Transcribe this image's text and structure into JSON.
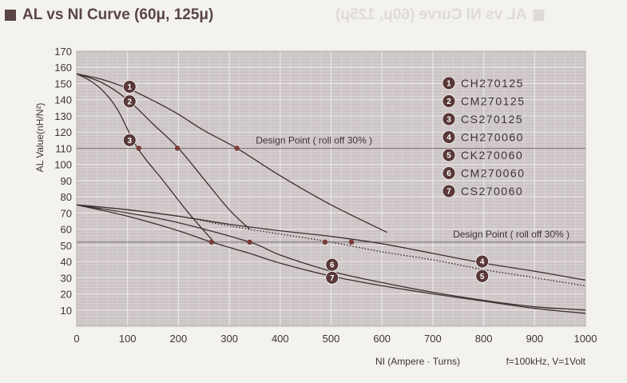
{
  "title": "AL vs NI Curve (60μ, 125μ)",
  "title_color": "#5a4545",
  "plot_bg": "#ccc4c5",
  "curve_color": "#3d3030",
  "chart_data": {
    "type": "line",
    "xlabel": "NI (Ampere · Turns)",
    "ylabel": "AL Value(nH/N²)",
    "condition": "f=100kHz, V=1Volt",
    "xlim": [
      0,
      1000
    ],
    "ylim": [
      0,
      170
    ],
    "x_ticks": [
      "0",
      "100",
      "200",
      "300",
      "400",
      "500",
      "600",
      "700",
      "800",
      "900",
      "1000"
    ],
    "y_ticks": [
      "10",
      "20",
      "30",
      "40",
      "50",
      "60",
      "70",
      "80",
      "90",
      "100",
      "110",
      "120",
      "130",
      "140",
      "150",
      "160",
      "170"
    ],
    "grid": true,
    "legend_position": "top-right",
    "legend": [
      {
        "badge": "1",
        "label": "CH270125"
      },
      {
        "badge": "2",
        "label": "CM270125"
      },
      {
        "badge": "3",
        "label": "CS270125"
      },
      {
        "badge": "4",
        "label": "CH270060"
      },
      {
        "badge": "5",
        "label": "CK270060"
      },
      {
        "badge": "6",
        "label": "CM270060"
      },
      {
        "badge": "7",
        "label": "CS270060"
      }
    ],
    "design_points": [
      {
        "label": "Design Point ( roll off 30% )",
        "y": 110
      },
      {
        "label": "Design Point ( roll off 30% )",
        "y": 52
      }
    ],
    "series": [
      {
        "name": "CH270125",
        "badge": "1",
        "dash": false,
        "x": [
          0,
          50,
          100,
          150,
          200,
          250,
          315,
          400,
          500,
          610
        ],
        "y": [
          156,
          152.5,
          147,
          139.5,
          131,
          121,
          110,
          93,
          75,
          58
        ],
        "design_point": [
          315,
          110
        ],
        "badge_at": [
          104,
          148
        ]
      },
      {
        "name": "CM270125",
        "badge": "2",
        "dash": false,
        "x": [
          0,
          50,
          100,
          150,
          200,
          250,
          300,
          340
        ],
        "y": [
          156,
          150.5,
          140,
          125,
          110,
          91,
          72,
          60
        ],
        "design_point": [
          198,
          110
        ],
        "badge_at": [
          104,
          139
        ]
      },
      {
        "name": "CS270125",
        "badge": "3",
        "dash": false,
        "x": [
          0,
          25,
          50,
          80,
          120,
          170,
          220,
          270
        ],
        "y": [
          156,
          152,
          146,
          134,
          110,
          90,
          70,
          52
        ],
        "design_point": [
          122,
          110
        ],
        "badge_at": [
          104,
          115
        ]
      },
      {
        "name": "CH270060",
        "badge": "4",
        "dash": false,
        "x": [
          0,
          100,
          200,
          300,
          400,
          500,
          600,
          700,
          800,
          900,
          1000
        ],
        "y": [
          75,
          72,
          68,
          63,
          59,
          55.5,
          51,
          45,
          39,
          34,
          28.5
        ],
        "design_point": [
          540,
          52
        ],
        "badge_at": [
          797,
          40
        ]
      },
      {
        "name": "CK270060",
        "badge": "5",
        "dash": true,
        "x": [
          0,
          100,
          200,
          300,
          400,
          500,
          600,
          700,
          800,
          900,
          1000
        ],
        "y": [
          75,
          72,
          68,
          62,
          57,
          52,
          46,
          41,
          35,
          30,
          25
        ],
        "design_point": [
          488,
          52
        ],
        "badge_at": [
          797,
          31
        ]
      },
      {
        "name": "CM270060",
        "badge": "6",
        "dash": false,
        "x": [
          0,
          100,
          200,
          340,
          400,
          500,
          600,
          700,
          800,
          900,
          1000
        ],
        "y": [
          75,
          70,
          64,
          52,
          44,
          34,
          27,
          21,
          16,
          12,
          10
        ],
        "design_point": [
          340,
          52
        ],
        "badge_at": [
          502,
          38
        ]
      },
      {
        "name": "CS270060",
        "badge": "7",
        "dash": false,
        "x": [
          0,
          100,
          200,
          265,
          340,
          400,
          500,
          600,
          700,
          800,
          900,
          1000
        ],
        "y": [
          75,
          68,
          59,
          52,
          45,
          39,
          31,
          25,
          20,
          15.5,
          11,
          8
        ],
        "design_point": [
          265,
          52
        ],
        "badge_at": [
          502,
          30
        ]
      }
    ]
  }
}
